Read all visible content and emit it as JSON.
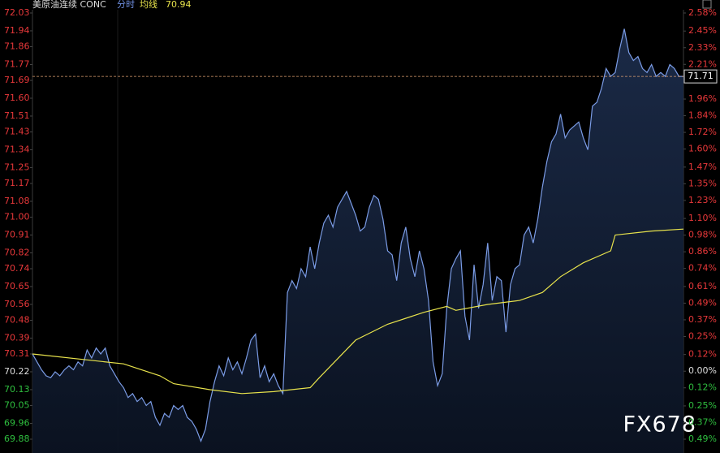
{
  "chart_data": {
    "type": "line",
    "title": "美原油连续 CONC",
    "current_price": 71.71,
    "watermark": "FX678",
    "up_color": "#e8383a",
    "down_color": "#2fbf3f",
    "flat_color": "#dddddd",
    "xlim": [
      0,
      143
    ],
    "ylim": [
      69.88,
      72.03
    ],
    "yticks": [
      72.03,
      71.94,
      71.86,
      71.77,
      71.69,
      {
        "value": 71.6,
        "label": "71.60"
      },
      71.51,
      71.43,
      71.34,
      71.25,
      71.17,
      71.08,
      {
        "value": 71,
        "label": "71.00"
      },
      70.91,
      70.82,
      70.74,
      70.65,
      70.56,
      70.48,
      70.39,
      70.31,
      70.22,
      70.13,
      70.05,
      69.96,
      69.88
    ],
    "y2lim": [
      -0.49,
      2.58
    ],
    "y2ticks": [
      {
        "value": 2.58,
        "label": "2.58%"
      },
      {
        "value": 2.45,
        "label": "2.45%"
      },
      {
        "value": 2.33,
        "label": "2.33%"
      },
      {
        "value": 2.21,
        "label": "2.21%"
      },
      {
        "value": 1.96,
        "label": "1.96%"
      },
      {
        "value": 1.84,
        "label": "1.84%"
      },
      {
        "value": 1.72,
        "label": "1.72%"
      },
      {
        "value": 1.6,
        "label": "1.60%"
      },
      {
        "value": 1.47,
        "label": "1.47%"
      },
      {
        "value": 1.35,
        "label": "1.35%"
      },
      {
        "value": 1.23,
        "label": "1.23%"
      },
      {
        "value": 1.1,
        "label": "1.10%"
      },
      {
        "value": 0.98,
        "label": "0.98%"
      },
      {
        "value": 0.86,
        "label": "0.86%"
      },
      {
        "value": 0.74,
        "label": "0.74%"
      },
      {
        "value": 0.61,
        "label": "0.61%"
      },
      {
        "value": 0.49,
        "label": "0.49%"
      },
      {
        "value": 0.37,
        "label": "0.37%"
      },
      {
        "value": 0.25,
        "label": "0.25%"
      },
      {
        "value": 0.12,
        "label": "0.12%"
      },
      {
        "value": 0,
        "label": "0.00%"
      },
      {
        "value": -0.12,
        "label": "0.12%"
      },
      {
        "value": -0.25,
        "label": "0.25%"
      },
      {
        "value": -0.37,
        "label": "0.37%"
      },
      {
        "value": -0.49,
        "label": "0.49%"
      }
    ],
    "series": [
      {
        "name": "分时",
        "color": "#7b9ce6",
        "values": [
          70.31,
          70.27,
          70.23,
          70.2,
          70.19,
          70.22,
          70.2,
          70.23,
          70.25,
          70.23,
          70.27,
          70.25,
          70.33,
          70.29,
          70.34,
          70.31,
          70.34,
          70.25,
          70.21,
          70.17,
          70.14,
          70.09,
          70.11,
          70.07,
          70.09,
          70.05,
          70.07,
          69.99,
          69.95,
          70.01,
          69.99,
          70.05,
          70.03,
          70.05,
          69.99,
          69.97,
          69.93,
          69.87,
          69.93,
          70.07,
          70.17,
          70.25,
          70.2,
          70.29,
          70.23,
          70.27,
          70.21,
          70.29,
          70.38,
          70.41,
          70.19,
          70.25,
          70.17,
          70.21,
          70.15,
          70.11,
          70.62,
          70.68,
          70.64,
          70.74,
          70.7,
          70.85,
          70.74,
          70.87,
          70.97,
          71.01,
          70.95,
          71.05,
          71.09,
          71.13,
          71.07,
          71.01,
          70.93,
          70.95,
          71.05,
          71.11,
          71.09,
          70.99,
          70.83,
          70.81,
          70.68,
          70.87,
          70.95,
          70.79,
          70.7,
          70.83,
          70.74,
          70.58,
          70.27,
          70.15,
          70.21,
          70.54,
          70.74,
          70.79,
          70.83,
          70.5,
          70.38,
          70.76,
          70.54,
          70.66,
          70.87,
          70.58,
          70.7,
          70.68,
          70.42,
          70.66,
          70.74,
          70.76,
          70.91,
          70.95,
          70.87,
          70.99,
          71.15,
          71.28,
          71.38,
          71.42,
          71.52,
          71.4,
          71.44,
          71.46,
          71.48,
          71.4,
          71.34,
          71.56,
          71.58,
          71.65,
          71.75,
          71.71,
          71.73,
          71.85,
          71.95,
          71.83,
          71.79,
          71.81,
          71.75,
          71.73,
          71.77,
          71.71,
          71.73,
          71.71,
          71.77,
          71.75,
          71.71,
          71.71
        ]
      },
      {
        "name": "均线",
        "color": "#e8e34c",
        "last_value": 70.94,
        "x": [
          0,
          20,
          28,
          31,
          39,
          46,
          53,
          61,
          63,
          71,
          78,
          86,
          91,
          93,
          100,
          107,
          112,
          116,
          121,
          127,
          128,
          136,
          143
        ],
        "values": [
          70.31,
          70.26,
          70.2,
          70.16,
          70.13,
          70.11,
          70.12,
          70.14,
          70.19,
          70.38,
          70.46,
          70.52,
          70.55,
          70.53,
          70.56,
          70.58,
          70.62,
          70.7,
          70.77,
          70.83,
          70.91,
          70.93,
          70.94
        ]
      }
    ]
  }
}
